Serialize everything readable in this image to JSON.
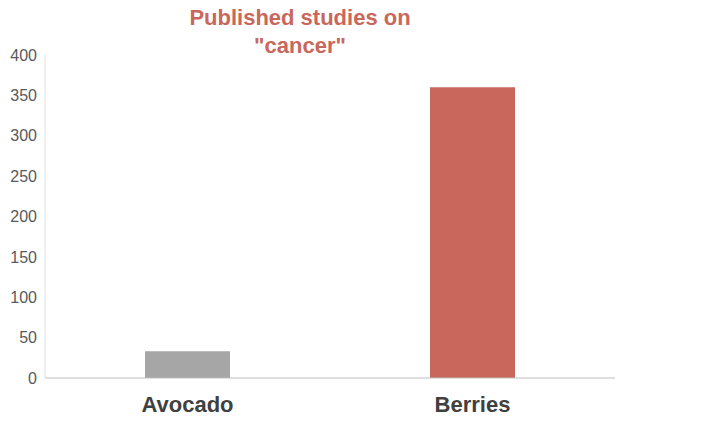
{
  "chart_data": {
    "type": "bar",
    "title": "Published studies on \"cancer\"",
    "categories": [
      "Avocado",
      "Berries"
    ],
    "values": [
      33,
      360
    ],
    "colors": [
      "#a6a6a6",
      "#c9675d"
    ],
    "ylim": [
      0,
      400
    ],
    "yticks": [
      0,
      50,
      100,
      150,
      200,
      250,
      300,
      350,
      400
    ],
    "grid": false
  }
}
